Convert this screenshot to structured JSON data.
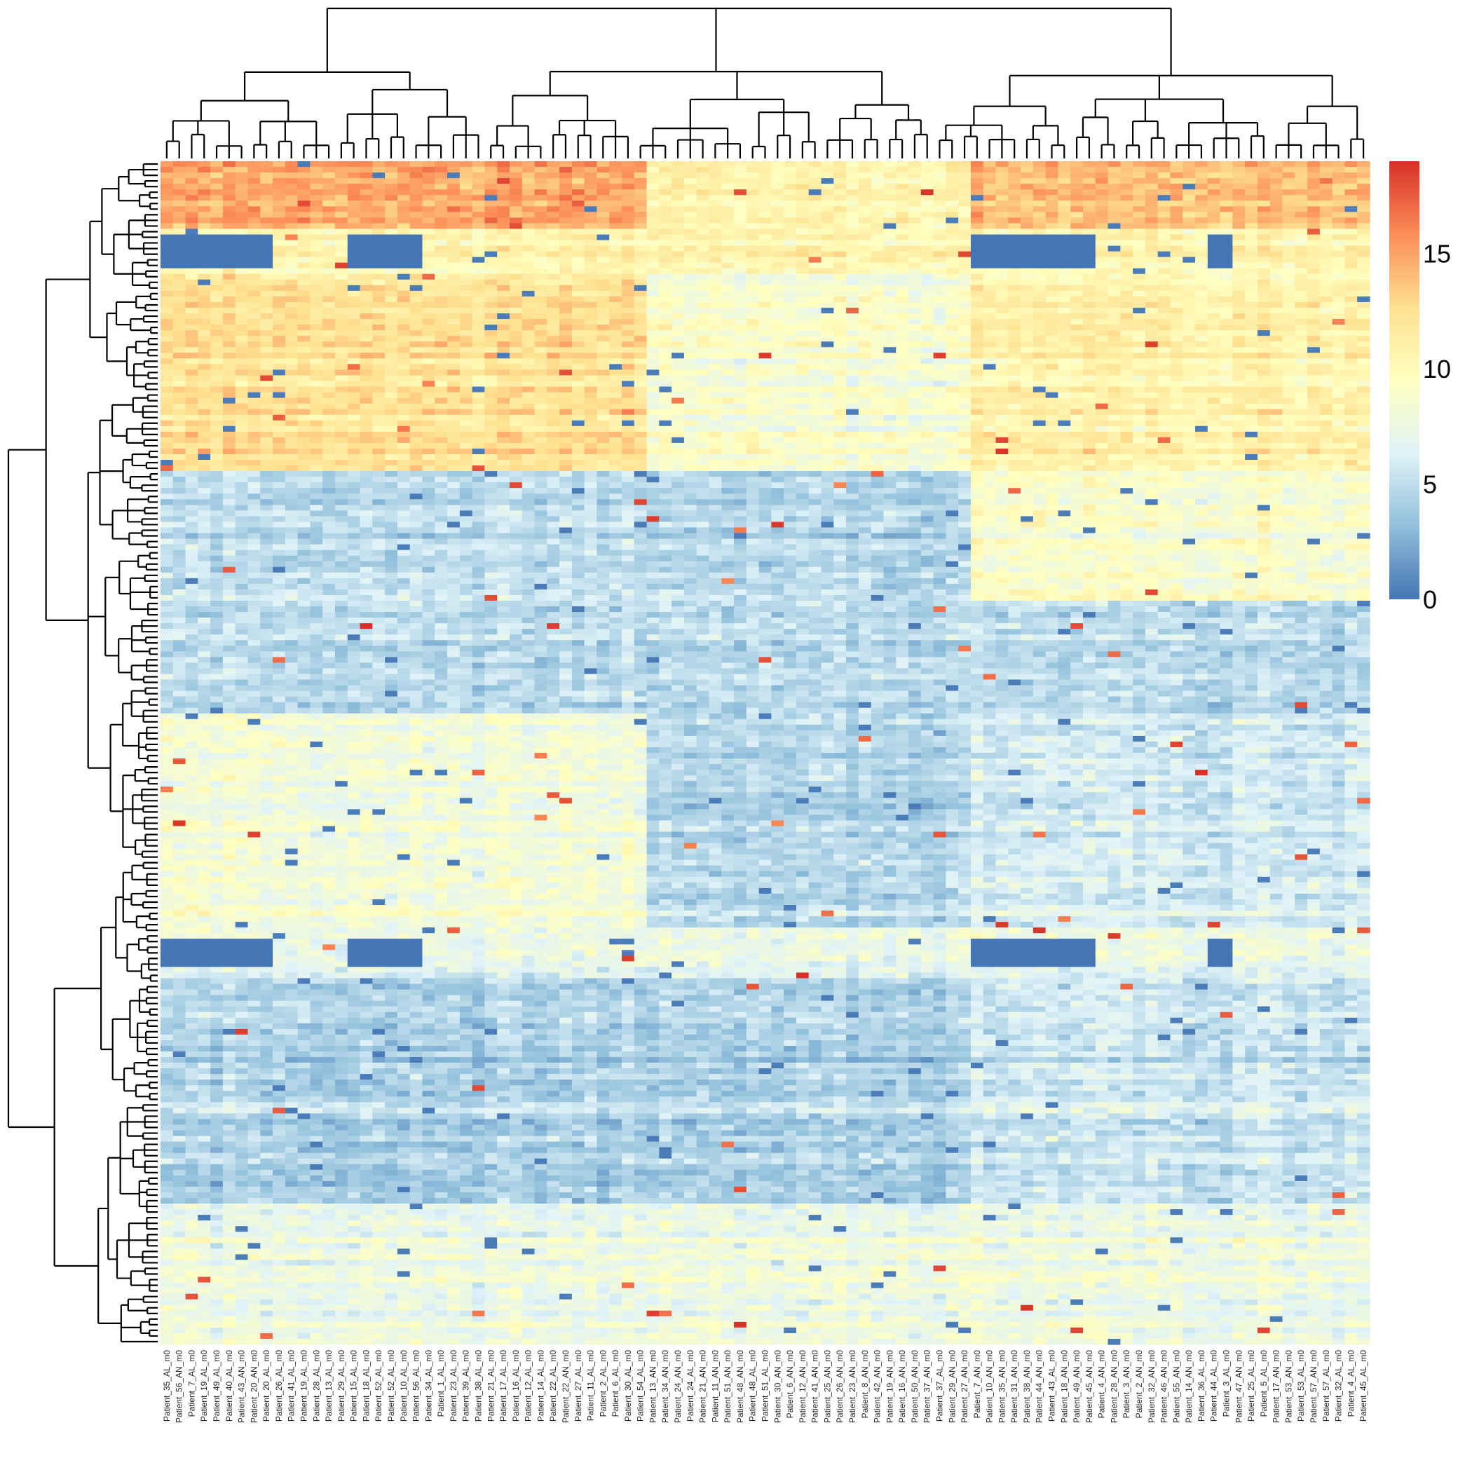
{
  "chart_data": {
    "type": "heatmap",
    "title": "",
    "xlabel": "",
    "ylabel": "",
    "color_scale": {
      "min": 0,
      "max": 19,
      "stops": [
        "#4575B4",
        "#91BFDB",
        "#E0F3F8",
        "#FFFFBF",
        "#FEE090",
        "#FC8D59",
        "#D73027"
      ],
      "legend_ticks": [
        0,
        5,
        10,
        15
      ],
      "legend_tick_labels": [
        "0",
        "5",
        "10",
        "15"
      ],
      "legend_placement": "right"
    },
    "row_dendrogram": "left",
    "column_dendrogram": "top",
    "row_count": 210,
    "columns": [
      "Patient_35_AL_m0",
      "Patient_56_AN_m0",
      "Patient_7_AL_m0",
      "Patient_19_AL_m0",
      "Patient_49_AL_m0",
      "Patient_40_AL_m0",
      "Patient_43_AN_m0",
      "Patient_20_AN_m0",
      "Patient_20_AL_m0",
      "Patient_26_AL_m0",
      "Patient_41_AL_m0",
      "Patient_19_AL_m0",
      "Patient_28_AL_m0",
      "Patient_13_AL_m0",
      "Patient_29_AL_m0",
      "Patient_15_AL_m0",
      "Patient_18_AL_m0",
      "Patient_52_AL_m0",
      "Patient_52_AL_m0",
      "Patient_10_AL_m0",
      "Patient_56_AL_m0",
      "Patient_34_AL_m0",
      "Patient_1_AL_m0",
      "Patient_23_AL_m0",
      "Patient_39_AL_m0",
      "Patient_38_AL_m0",
      "Patient_21_AL_m0",
      "Patient_17_AL_m0",
      "Patient_16_AL_m0",
      "Patient_12_AL_m0",
      "Patient_14_AL_m0",
      "Patient_22_AL_m0",
      "Patient_22_AN_m0",
      "Patient_27_AL_m0",
      "Patient_11_AL_m0",
      "Patient_2_AL_m0",
      "Patient_6_AL_m0",
      "Patient_30_AL_m0",
      "Patient_54_AL_m0",
      "Patient_13_AN_m0",
      "Patient_34_AN_m0",
      "Patient_24_AN_m0",
      "Patient_24_AL_m0",
      "Patient_21_AN_m0",
      "Patient_11_AN_m0",
      "Patient_51_AN_m0",
      "Patient_48_AN_m0",
      "Patient_48_AL_m0",
      "Patient_51_AL_m0",
      "Patient_30_AN_m0",
      "Patient_6_AN_m0",
      "Patient_12_AN_m0",
      "Patient_41_AN_m0",
      "Patient_25_AN_m0",
      "Patient_26_AN_m0",
      "Patient_23_AN_m0",
      "Patient_8_AN_m0",
      "Patient_42_AN_m0",
      "Patient_19_AN_m0",
      "Patient_16_AN_m0",
      "Patient_50_AN_m0",
      "Patient_37_AN_m0",
      "Patient_37_AL_m0",
      "Patient_29_AN_m0",
      "Patient_27_AN_m0",
      "Patient_7_AN_m0",
      "Patient_10_AN_m0",
      "Patient_35_AN_m0",
      "Patient_31_AN_m0",
      "Patient_38_AN_m0",
      "Patient_44_AN_m0",
      "Patient_43_AL_m0",
      "Patient_18_AN_m0",
      "Patient_49_AN_m0",
      "Patient_45_AN_m0",
      "Patient_4_AN_m0",
      "Patient_28_AN_m0",
      "Patient_3_AN_m0",
      "Patient_2_AN_m0",
      "Patient_32_AN_m0",
      "Patient_46_AN_m0",
      "Patient_55_AN_m0",
      "Patient_14_AN_m0",
      "Patient_36_AL_m0",
      "Patient_44_AL_m0",
      "Patient_3_AL_m0",
      "Patient_47_AN_m0",
      "Patient_25_AL_m0",
      "Patient_5_AL_m0",
      "Patient_17_AN_m0",
      "Patient_53_AN_m0",
      "Patient_53_AL_m0",
      "Patient_57_AN_m0",
      "Patient_57_AL_m0",
      "Patient_32_AL_m0",
      "Patient_4_AL_m0",
      "Patient_45_AL_m0"
    ],
    "blocks": [
      {
        "col_start": 0,
        "col_end": 9,
        "row_start": 13,
        "row_end": 19,
        "value": 0
      },
      {
        "col_start": 0,
        "col_end": 9,
        "row_start": 138,
        "row_end": 143,
        "value": 0
      },
      {
        "col_start": 15,
        "col_end": 21,
        "row_start": 13,
        "row_end": 19,
        "value": 0
      },
      {
        "col_start": 15,
        "col_end": 21,
        "row_start": 138,
        "row_end": 143,
        "value": 0
      },
      {
        "col_start": 65,
        "col_end": 75,
        "row_start": 13,
        "row_end": 19,
        "value": 0
      },
      {
        "col_start": 65,
        "col_end": 75,
        "row_start": 138,
        "row_end": 143,
        "value": 0
      },
      {
        "col_start": 84,
        "col_end": 86,
        "row_start": 13,
        "row_end": 19,
        "value": 0
      },
      {
        "col_start": 84,
        "col_end": 86,
        "row_start": 138,
        "row_end": 143,
        "value": 0
      }
    ],
    "row_band_means": [
      {
        "row_start": 0,
        "row_end": 12,
        "mean": 13.2
      },
      {
        "row_start": 12,
        "row_end": 20,
        "mean": 10.5
      },
      {
        "row_start": 20,
        "row_end": 55,
        "mean": 11.2
      },
      {
        "row_start": 55,
        "row_end": 78,
        "mean": 5.8
      },
      {
        "row_start": 78,
        "row_end": 98,
        "mean": 4.8
      },
      {
        "row_start": 98,
        "row_end": 136,
        "mean": 6.6
      },
      {
        "row_start": 136,
        "row_end": 145,
        "mean": 7.2
      },
      {
        "row_start": 145,
        "row_end": 185,
        "mean": 4.6
      },
      {
        "row_start": 185,
        "row_end": 210,
        "mean": 7.4
      }
    ]
  }
}
